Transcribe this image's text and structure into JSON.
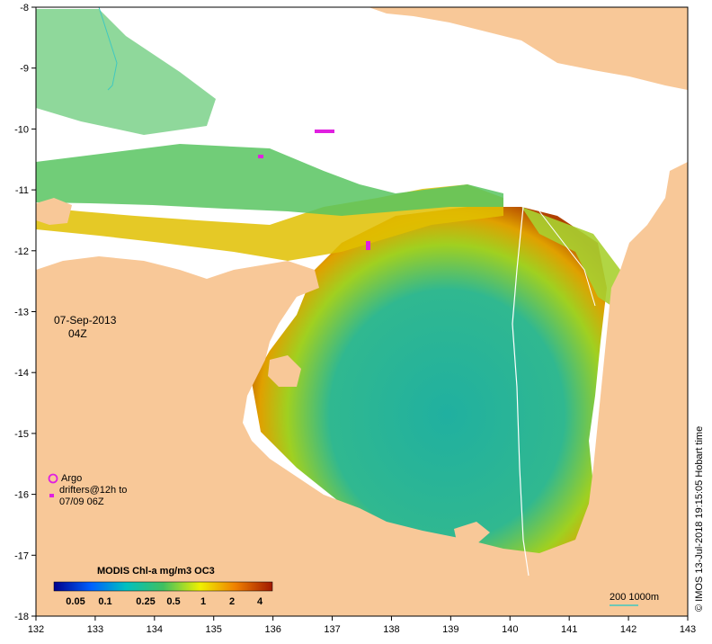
{
  "map": {
    "date": "07-Sep-2013",
    "time": "04Z",
    "x_axis": {
      "ticks": [
        "132",
        "133",
        "134",
        "135",
        "136",
        "137",
        "138",
        "139",
        "140",
        "141",
        "142",
        "143"
      ]
    },
    "y_axis": {
      "ticks": [
        "-8",
        "-9",
        "-10",
        "-11",
        "-12",
        "-13",
        "-14",
        "-15",
        "-16",
        "-17",
        "-18"
      ]
    },
    "extent": {
      "lon": [
        132,
        143
      ],
      "lat": [
        -18,
        -8
      ]
    },
    "colors": {
      "land": "#f8c898",
      "no_data": "#ffffff",
      "drifter": "#e020e0",
      "isobath": "#40c8c0"
    }
  },
  "legend": {
    "argo": "Argo",
    "drifters_line1": "drifters@12h to",
    "drifters_line2": "07/09 06Z"
  },
  "colorbar": {
    "title": "MODIS Chl-a mg/m3 OC3",
    "ticks": [
      "0.05",
      "0.1",
      "0.25",
      "0.5",
      "1",
      "2",
      "4"
    ],
    "stops": [
      "#00008c",
      "#0060ff",
      "#00c0c0",
      "#40c060",
      "#f0f000",
      "#f08000",
      "#a01800"
    ]
  },
  "scale_bar": {
    "label": "200  1000m"
  },
  "credit": "© IMOS 13-Jul-2018 19:15:05 Hobart time"
}
